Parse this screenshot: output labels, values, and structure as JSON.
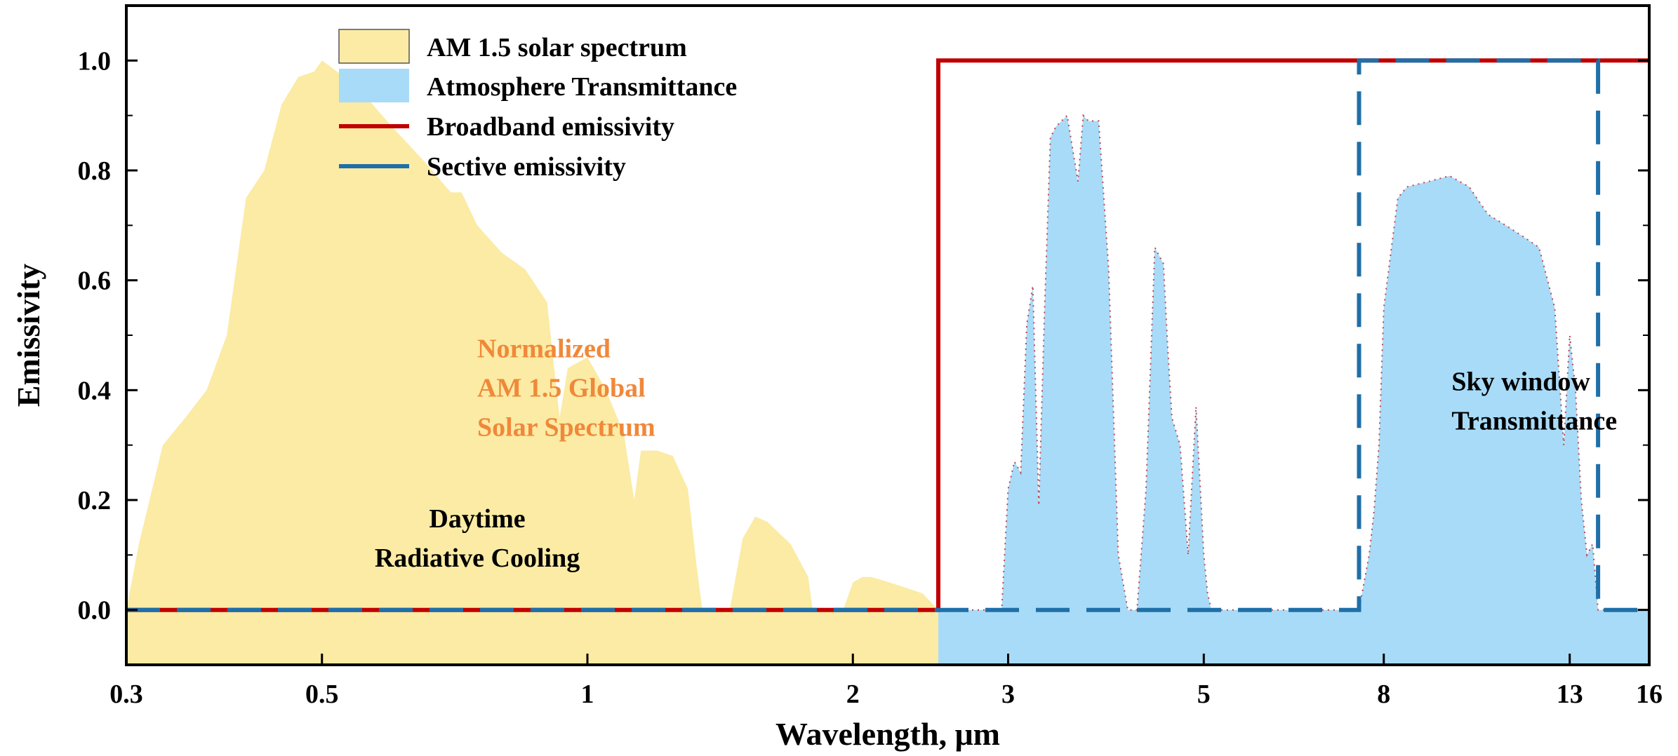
{
  "chart_data": {
    "type": "area",
    "xlabel": "Wavelength, μm",
    "ylabel": "Emissivity",
    "xscale": "log",
    "xlim": [
      0.3,
      16
    ],
    "ylim": [
      -0.1,
      1.1
    ],
    "xticks": [
      0.3,
      0.5,
      1,
      2,
      3,
      5,
      8,
      13,
      16
    ],
    "xtick_labels": [
      "0.3",
      "0.5",
      "1",
      "2",
      "3",
      "5",
      "8",
      "13",
      "16"
    ],
    "yticks": [
      0.0,
      0.2,
      0.4,
      0.6,
      0.8,
      1.0
    ],
    "ytick_labels": [
      "0.0",
      "0.2",
      "0.4",
      "0.6",
      "0.8",
      "1.0"
    ],
    "grid": false,
    "legend_position": "top-left",
    "colors": {
      "solar": "#fbeba4",
      "atmosphere": "#a8dbf8",
      "broadband": "#c00000",
      "selective": "#1f6fa8"
    },
    "series": [
      {
        "name": "AM 1.5 solar spectrum",
        "kind": "area",
        "x": [
          0.3,
          0.31,
          0.33,
          0.35,
          0.37,
          0.39,
          0.41,
          0.43,
          0.45,
          0.47,
          0.49,
          0.5,
          0.52,
          0.55,
          0.6,
          0.65,
          0.7,
          0.72,
          0.75,
          0.8,
          0.85,
          0.9,
          0.93,
          0.95,
          1.0,
          1.05,
          1.1,
          1.13,
          1.15,
          1.2,
          1.25,
          1.3,
          1.33,
          1.35,
          1.38,
          1.45,
          1.5,
          1.55,
          1.6,
          1.7,
          1.78,
          1.8,
          1.95,
          2.0,
          2.05,
          2.1,
          2.2,
          2.3,
          2.4,
          2.5
        ],
        "y": [
          0.0,
          0.12,
          0.3,
          0.35,
          0.4,
          0.5,
          0.75,
          0.8,
          0.92,
          0.97,
          0.98,
          1.0,
          0.98,
          0.95,
          0.88,
          0.82,
          0.76,
          0.76,
          0.7,
          0.65,
          0.62,
          0.56,
          0.35,
          0.44,
          0.46,
          0.4,
          0.32,
          0.2,
          0.29,
          0.29,
          0.28,
          0.22,
          0.08,
          0.0,
          0.0,
          0.0,
          0.13,
          0.17,
          0.16,
          0.12,
          0.06,
          0.0,
          0.0,
          0.05,
          0.06,
          0.06,
          0.05,
          0.04,
          0.03,
          0.0
        ]
      },
      {
        "name": "Atmosphere Transmittance",
        "kind": "area",
        "x": [
          2.5,
          2.95,
          3.0,
          3.05,
          3.1,
          3.15,
          3.2,
          3.25,
          3.3,
          3.35,
          3.4,
          3.5,
          3.6,
          3.65,
          3.7,
          3.8,
          3.9,
          4.0,
          4.1,
          4.15,
          4.2,
          4.3,
          4.4,
          4.5,
          4.55,
          4.6,
          4.7,
          4.8,
          4.9,
          5.0,
          5.05,
          5.1,
          5.2,
          5.3,
          5.5,
          5.8,
          6.5,
          7.5,
          7.7,
          7.8,
          7.9,
          8.0,
          8.3,
          8.5,
          9.0,
          9.5,
          10.0,
          10.5,
          11.0,
          11.5,
          12.0,
          12.5,
          12.8,
          13.0,
          13.2,
          13.4,
          13.6,
          13.8,
          14.0,
          15.0,
          16.0
        ],
        "y": [
          0.0,
          0.0,
          0.22,
          0.27,
          0.25,
          0.52,
          0.59,
          0.19,
          0.55,
          0.86,
          0.88,
          0.9,
          0.78,
          0.9,
          0.89,
          0.89,
          0.62,
          0.1,
          0.0,
          0.0,
          0.0,
          0.22,
          0.66,
          0.63,
          0.48,
          0.35,
          0.3,
          0.1,
          0.37,
          0.1,
          0.03,
          0.0,
          0.0,
          0.0,
          0.0,
          0.0,
          0.0,
          0.0,
          0.1,
          0.18,
          0.3,
          0.55,
          0.75,
          0.77,
          0.78,
          0.79,
          0.77,
          0.72,
          0.7,
          0.68,
          0.66,
          0.55,
          0.3,
          0.5,
          0.4,
          0.2,
          0.1,
          0.12,
          0.0,
          0.0,
          0.0
        ]
      },
      {
        "name": "Broadband emissivity",
        "kind": "line",
        "style": "solid",
        "x": [
          0.3,
          2.5,
          2.5,
          16
        ],
        "y": [
          0.0,
          0.0,
          1.0,
          1.0
        ]
      },
      {
        "name": "Sective emissivity",
        "kind": "line",
        "style": "dashed",
        "x": [
          0.3,
          7.5,
          7.5,
          14.0,
          14.0,
          16
        ],
        "y": [
          0.0,
          0.0,
          1.0,
          1.0,
          0.0,
          0.0
        ]
      }
    ],
    "annotations": [
      {
        "lines": [
          "Normalized",
          "AM 1.5 Global",
          "Solar Spectrum"
        ],
        "color": "#f0883a",
        "align": "left",
        "x": 0.75,
        "y": 0.46
      },
      {
        "lines": [
          "Daytime",
          "Radiative Cooling"
        ],
        "color": "#000000",
        "align": "middle",
        "x": 0.75,
        "y": 0.15
      },
      {
        "lines": [
          "Sky window",
          "Transmittance"
        ],
        "color": "#000000",
        "align": "left",
        "x": 9.55,
        "y": 0.4
      }
    ]
  }
}
